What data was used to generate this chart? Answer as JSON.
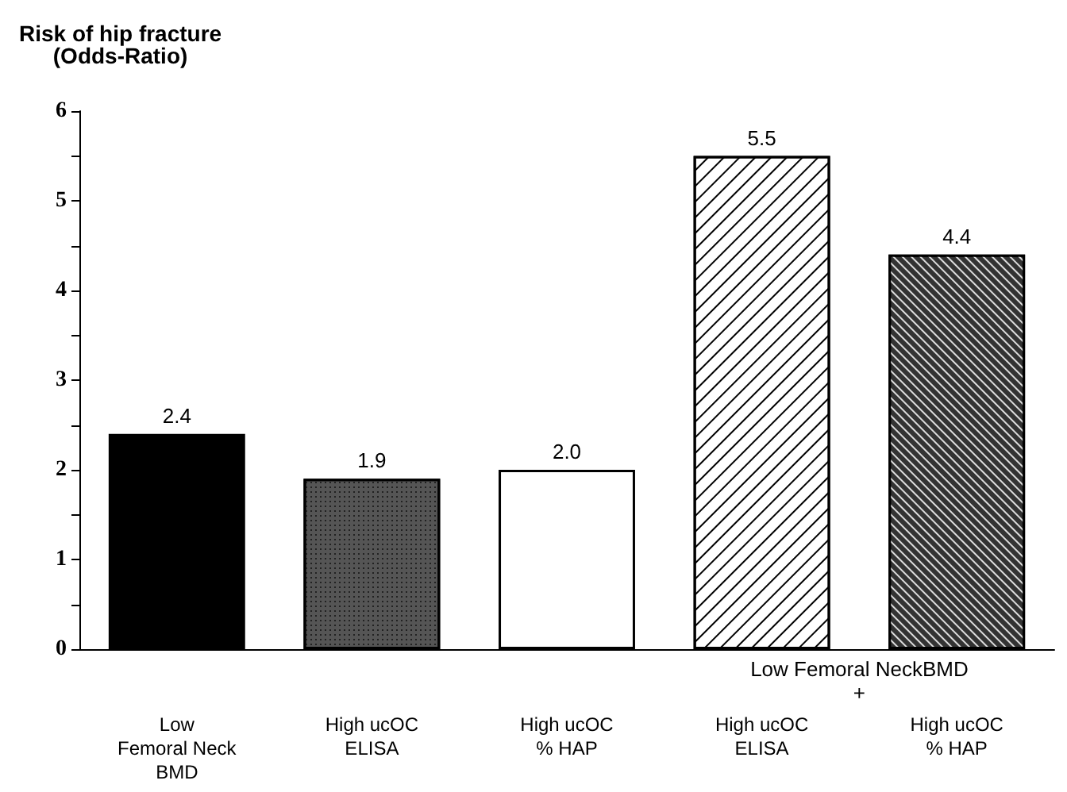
{
  "chart_data": {
    "type": "bar",
    "ylabel": "Risk of hip fracture\n(Odds-Ratio)",
    "categories": [
      "Low\nFemoral Neck\nBMD",
      "High ucOC\nELISA",
      "High ucOC\n% HAP",
      "High ucOC\nELISA",
      "High ucOC\n% HAP"
    ],
    "values": [
      2.4,
      1.9,
      2.0,
      5.5,
      4.4
    ],
    "colors": [
      "#000000",
      "#555555",
      "#ffffff",
      "#ffffff",
      "#333333"
    ],
    "value_labels": [
      "2.4",
      "1.9",
      "2.0",
      "5.5",
      "4.4"
    ],
    "ylim": [
      0,
      6
    ],
    "yticks": [
      0,
      {
        "value": 0.5,
        "label": null
      },
      1,
      {
        "value": 1.5,
        "label": null
      },
      2,
      {
        "value": 2.5,
        "label": null
      },
      3,
      {
        "value": 3.5,
        "label": null
      },
      4,
      {
        "value": 4.5,
        "label": null
      },
      5,
      {
        "value": 5.5,
        "label": null
      },
      6
    ],
    "annotations": [
      "Low Femoral NeckBMD\n+"
    ],
    "grid": false
  }
}
